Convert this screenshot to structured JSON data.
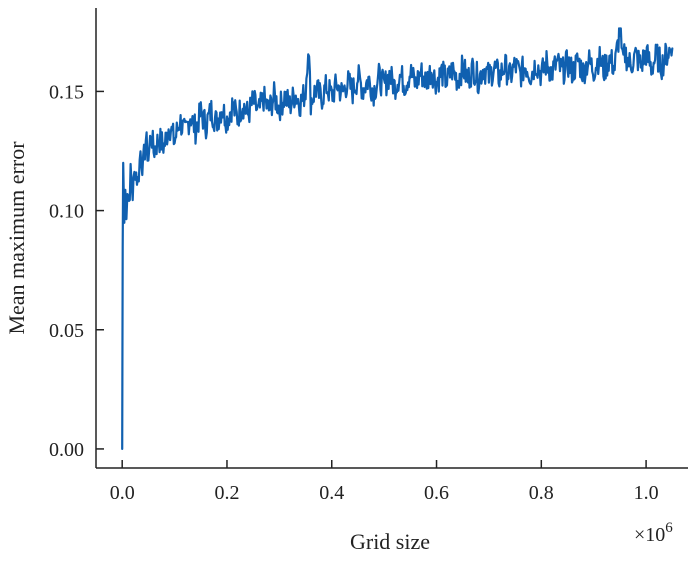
{
  "chart_data": {
    "type": "line",
    "xlabel": "Grid size",
    "ylabel": "Mean maximum error",
    "x_scale_label": "×10",
    "x_scale_exponent": "6",
    "xlim": [
      -0.05,
      1.08
    ],
    "ylim": [
      -0.008,
      0.185
    ],
    "xticks": [
      0.0,
      0.2,
      0.4,
      0.6,
      0.8,
      1.0
    ],
    "xtick_labels": [
      "0.0",
      "0.2",
      "0.4",
      "0.6",
      "0.8",
      "1.0"
    ],
    "yticks": [
      0.0,
      0.05,
      0.1,
      0.15
    ],
    "ytick_labels": [
      "0.00",
      "0.05",
      "0.10",
      "0.15"
    ],
    "grid": false,
    "legend": "none",
    "series": [
      {
        "color": "#1060b0",
        "points": [
          [
            0.0,
            0.0
          ],
          [
            0.001,
            0.085
          ],
          [
            0.002,
            0.12
          ],
          [
            0.004,
            0.095
          ],
          [
            0.006,
            0.108
          ],
          [
            0.008,
            0.101
          ],
          [
            0.01,
            0.11
          ],
          [
            0.013,
            0.104
          ],
          [
            0.016,
            0.115
          ],
          [
            0.02,
            0.107
          ],
          [
            0.025,
            0.118
          ],
          [
            0.03,
            0.112
          ],
          [
            0.035,
            0.125
          ],
          [
            0.04,
            0.118
          ],
          [
            0.045,
            0.13
          ],
          [
            0.05,
            0.122
          ],
          [
            0.055,
            0.133
          ],
          [
            0.06,
            0.125
          ],
          [
            0.07,
            0.13
          ],
          [
            0.08,
            0.127
          ],
          [
            0.09,
            0.136
          ],
          [
            0.1,
            0.129
          ],
          [
            0.11,
            0.138
          ],
          [
            0.12,
            0.132
          ],
          [
            0.13,
            0.14
          ],
          [
            0.14,
            0.134
          ],
          [
            0.15,
            0.141
          ],
          [
            0.16,
            0.136
          ],
          [
            0.17,
            0.142
          ],
          [
            0.18,
            0.137
          ],
          [
            0.19,
            0.143
          ],
          [
            0.2,
            0.138
          ],
          [
            0.21,
            0.144
          ],
          [
            0.22,
            0.139
          ],
          [
            0.23,
            0.145
          ],
          [
            0.24,
            0.14
          ],
          [
            0.25,
            0.146
          ],
          [
            0.26,
            0.141
          ],
          [
            0.27,
            0.147
          ],
          [
            0.28,
            0.142
          ],
          [
            0.29,
            0.148
          ],
          [
            0.3,
            0.143
          ],
          [
            0.31,
            0.148
          ],
          [
            0.32,
            0.144
          ],
          [
            0.33,
            0.149
          ],
          [
            0.34,
            0.145
          ],
          [
            0.35,
            0.15
          ],
          [
            0.355,
            0.17
          ],
          [
            0.36,
            0.146
          ],
          [
            0.37,
            0.151
          ],
          [
            0.38,
            0.147
          ],
          [
            0.39,
            0.152
          ],
          [
            0.4,
            0.148
          ],
          [
            0.41,
            0.153
          ],
          [
            0.42,
            0.149
          ],
          [
            0.43,
            0.154
          ],
          [
            0.44,
            0.15
          ],
          [
            0.45,
            0.156
          ],
          [
            0.46,
            0.151
          ],
          [
            0.47,
            0.155
          ],
          [
            0.48,
            0.15
          ],
          [
            0.49,
            0.156
          ],
          [
            0.5,
            0.152
          ],
          [
            0.51,
            0.157
          ],
          [
            0.52,
            0.152
          ],
          [
            0.53,
            0.157
          ],
          [
            0.54,
            0.153
          ],
          [
            0.55,
            0.158
          ],
          [
            0.56,
            0.153
          ],
          [
            0.57,
            0.158
          ],
          [
            0.58,
            0.154
          ],
          [
            0.59,
            0.159
          ],
          [
            0.6,
            0.154
          ],
          [
            0.61,
            0.158
          ],
          [
            0.62,
            0.154
          ],
          [
            0.63,
            0.159
          ],
          [
            0.64,
            0.155
          ],
          [
            0.65,
            0.16
          ],
          [
            0.66,
            0.155
          ],
          [
            0.67,
            0.16
          ],
          [
            0.68,
            0.155
          ],
          [
            0.69,
            0.16
          ],
          [
            0.7,
            0.156
          ],
          [
            0.71,
            0.16
          ],
          [
            0.72,
            0.156
          ],
          [
            0.73,
            0.161
          ],
          [
            0.74,
            0.156
          ],
          [
            0.75,
            0.161
          ],
          [
            0.76,
            0.157
          ],
          [
            0.77,
            0.161
          ],
          [
            0.78,
            0.157
          ],
          [
            0.79,
            0.162
          ],
          [
            0.8,
            0.157
          ],
          [
            0.81,
            0.162
          ],
          [
            0.82,
            0.158
          ],
          [
            0.83,
            0.162
          ],
          [
            0.84,
            0.158
          ],
          [
            0.85,
            0.162
          ],
          [
            0.86,
            0.158
          ],
          [
            0.87,
            0.163
          ],
          [
            0.88,
            0.158
          ],
          [
            0.89,
            0.163
          ],
          [
            0.9,
            0.159
          ],
          [
            0.91,
            0.164
          ],
          [
            0.92,
            0.159
          ],
          [
            0.93,
            0.164
          ],
          [
            0.94,
            0.16
          ],
          [
            0.95,
            0.176
          ],
          [
            0.955,
            0.162
          ],
          [
            0.96,
            0.166
          ],
          [
            0.97,
            0.161
          ],
          [
            0.98,
            0.165
          ],
          [
            0.99,
            0.161
          ],
          [
            1.0,
            0.166
          ],
          [
            1.01,
            0.16
          ],
          [
            1.02,
            0.165
          ],
          [
            1.03,
            0.161
          ],
          [
            1.04,
            0.166
          ],
          [
            1.05,
            0.168
          ]
        ]
      }
    ]
  }
}
